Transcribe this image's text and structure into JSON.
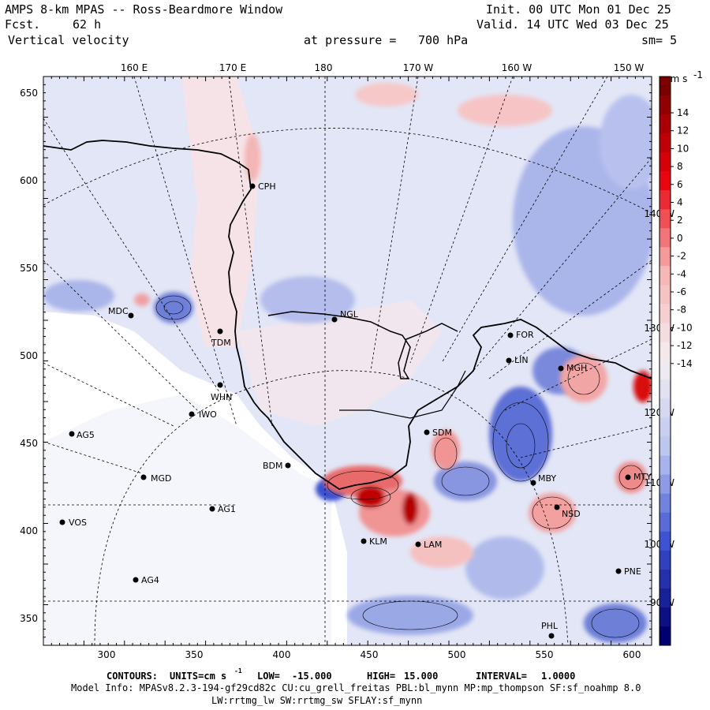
{
  "header": {
    "title": "AMPS 8-km MPAS -- Ross-Beardmore Window",
    "fcst_label": "Fcst.",
    "fcst_value": "62 h",
    "field": "Vertical velocity",
    "level_label": "at pressure =",
    "level_value": "700 hPa",
    "init": "Init. 00 UTC Mon 01 Dec 25",
    "valid": "Valid. 14 UTC Wed 03 Dec 25",
    "smooth": "sm= 5"
  },
  "axes": {
    "top_longitudes": [
      "160 E",
      "170 E",
      "180",
      "170 W",
      "160 W",
      "150 W"
    ],
    "left_y": [
      "650",
      "600",
      "550",
      "500",
      "450",
      "400",
      "350"
    ],
    "bottom_x": [
      "300",
      "350",
      "400",
      "450",
      "500",
      "550",
      "600"
    ],
    "right_longitudes": [
      "140 W",
      "130 W",
      "120 W",
      "110 W",
      "100 W",
      "90 W"
    ]
  },
  "colorbar": {
    "units": "cm s",
    "units_exp": "-1",
    "ticks": [
      "14",
      "12",
      "10",
      "8",
      "6",
      "4",
      "2",
      "0",
      "-2",
      "-4",
      "-6",
      "-8",
      "-10",
      "-12",
      "-14"
    ],
    "colors": {
      "pos_max": "#7a0000",
      "pos_mid": "#e8000a",
      "pos_low": "#f6b3b3",
      "zero": "#f4eef2",
      "neg_low": "#b8c3ef",
      "neg_mid": "#3a4fd0",
      "neg_max": "#00006e"
    }
  },
  "stations": [
    {
      "name": "CPH"
    },
    {
      "name": "MDC"
    },
    {
      "name": "TDM"
    },
    {
      "name": "NGL"
    },
    {
      "name": "WHN"
    },
    {
      "name": "IWO"
    },
    {
      "name": "AG5"
    },
    {
      "name": "SDM"
    },
    {
      "name": "BDM"
    },
    {
      "name": "MGD"
    },
    {
      "name": "AG1"
    },
    {
      "name": "VOS"
    },
    {
      "name": "AG4"
    },
    {
      "name": "KLM"
    },
    {
      "name": "LAM"
    },
    {
      "name": "MBY"
    },
    {
      "name": "NSD"
    },
    {
      "name": "PNE"
    },
    {
      "name": "PHL"
    },
    {
      "name": "FOR"
    },
    {
      "name": "LIN"
    },
    {
      "name": "MGH"
    },
    {
      "name": "MTY"
    }
  ],
  "footer": {
    "contours_label": "CONTOURS:",
    "units_label": "UNITS=cm s",
    "units_exp": "-1",
    "low_label": "LOW=",
    "low_value": "-15.000",
    "high_label": "HIGH=",
    "high_value": "15.000",
    "interval_label": "INTERVAL=",
    "interval_value": "1.0000",
    "model_info": "Model Info: MPASv8.2.3-194-gf29cd82c CU:cu_grell_freitas PBL:bl_mynn MP:mp_thompson SF:sf_noahmp 8.0",
    "model_info_2": "LW:rrtmg_lw SW:rrtmg_sw SFLAY:sf_mynn"
  }
}
